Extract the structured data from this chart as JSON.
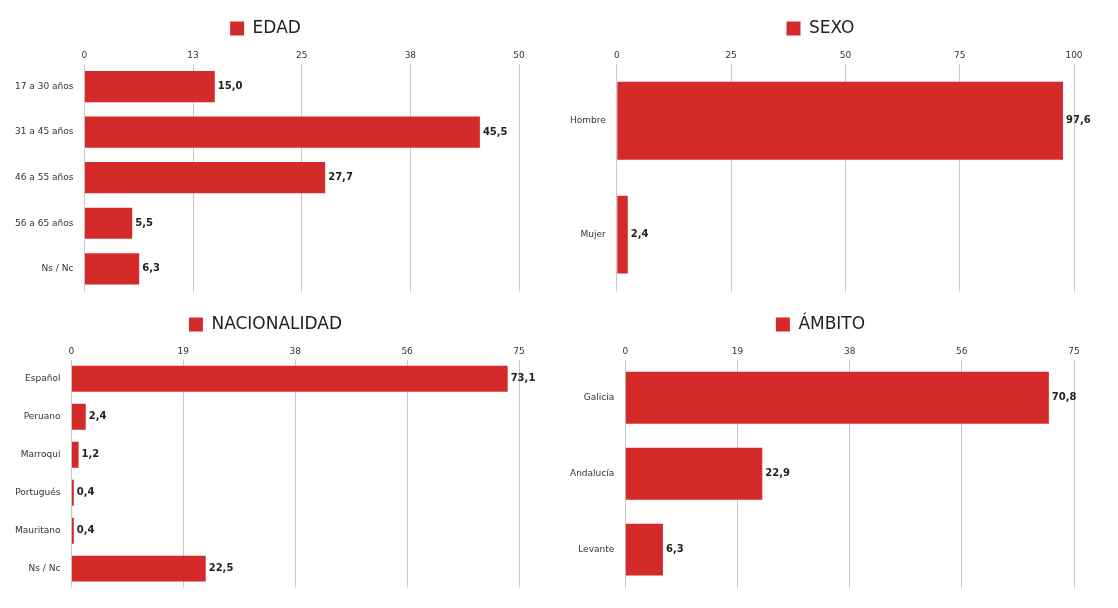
{
  "chart_data": [
    {
      "type": "bar",
      "orientation": "horizontal",
      "categories": [
        "17 a 30 años",
        "31 a 45 años",
        "46 a 55 años",
        "56 a 65 años",
        "Ns / Nc"
      ],
      "series": [
        {
          "name": "EDAD",
          "color": "#d42a2a",
          "values": [
            15.0,
            45.5,
            27.7,
            5.5,
            6.3
          ]
        }
      ],
      "value_labels": [
        "15,0",
        "45,5",
        "27,7",
        "5,5",
        "6,3"
      ],
      "xlim": [
        0,
        50
      ],
      "xticks": [
        0,
        {
          "value": 12.5,
          "label": "13"
        },
        25,
        {
          "value": 37.5,
          "label": "38"
        },
        50
      ],
      "grid": "x",
      "legend": "top"
    },
    {
      "type": "bar",
      "orientation": "horizontal",
      "categories": [
        "Hombre",
        "Mujer"
      ],
      "series": [
        {
          "name": "SEXO",
          "color": "#d42a2a",
          "values": [
            97.6,
            2.4
          ]
        }
      ],
      "value_labels": [
        "97,6",
        "2,4"
      ],
      "xlim": [
        0,
        100
      ],
      "xticks": [
        0,
        25,
        50,
        75,
        100
      ],
      "grid": "x",
      "legend": "top"
    },
    {
      "type": "bar",
      "orientation": "horizontal",
      "categories": [
        "Español",
        "Peruano",
        "Marroquí",
        "Portugués",
        "Mauritano",
        "Ns / Nc"
      ],
      "series": [
        {
          "name": "NACIONALIDAD",
          "color": "#d42a2a",
          "values": [
            73.1,
            2.4,
            1.2,
            0.4,
            0.4,
            22.5
          ]
        }
      ],
      "value_labels": [
        "73,1",
        "2,4",
        "1,2",
        "0,4",
        "0,4",
        "22,5"
      ],
      "xlim": [
        0,
        75
      ],
      "xticks": [
        0,
        {
          "value": 18.75,
          "label": "19"
        },
        {
          "value": 37.5,
          "label": "38"
        },
        {
          "value": 56.25,
          "label": "56"
        },
        75
      ],
      "grid": "x",
      "legend": "top"
    },
    {
      "type": "bar",
      "orientation": "horizontal",
      "categories": [
        "Galicia",
        "Andalucía",
        "Levante"
      ],
      "series": [
        {
          "name": "ÁMBITO",
          "color": "#d42a2a",
          "values": [
            70.8,
            22.9,
            6.3
          ]
        }
      ],
      "value_labels": [
        "70,8",
        "22,9",
        "6,3"
      ],
      "xlim": [
        0,
        75
      ],
      "xticks": [
        0,
        {
          "value": 18.75,
          "label": "19"
        },
        {
          "value": 37.5,
          "label": "38"
        },
        {
          "value": 56.25,
          "label": "56"
        },
        75
      ],
      "grid": "x",
      "legend": "top"
    }
  ]
}
